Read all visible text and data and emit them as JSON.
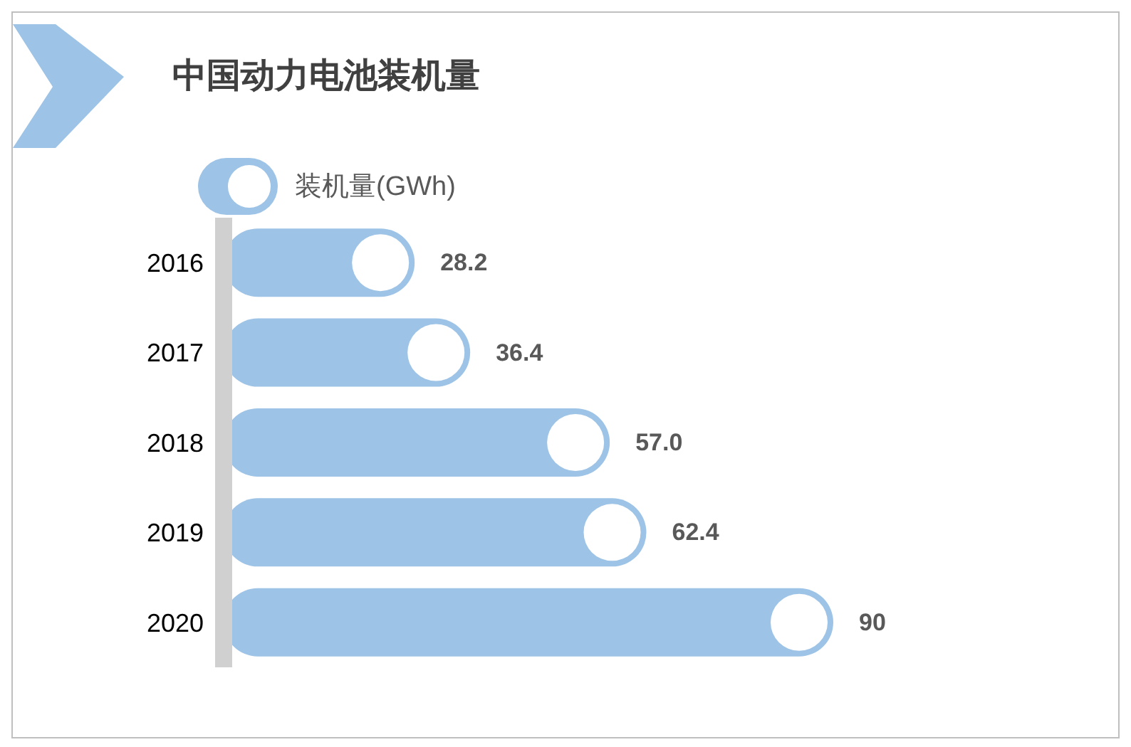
{
  "chart_data": {
    "type": "bar",
    "orientation": "horizontal",
    "title": "中国动力电池装机量",
    "categories": [
      "2016",
      "2017",
      "2018",
      "2019",
      "2020"
    ],
    "series": [
      {
        "name": "装机量(GWh)",
        "color": "#9dc3e6",
        "values": [
          28.2,
          36.4,
          57.0,
          62.4,
          90
        ],
        "value_labels": [
          "28.2",
          "36.4",
          "57.0",
          "62.4",
          "90"
        ]
      }
    ],
    "legend": "top",
    "grid": false
  }
}
